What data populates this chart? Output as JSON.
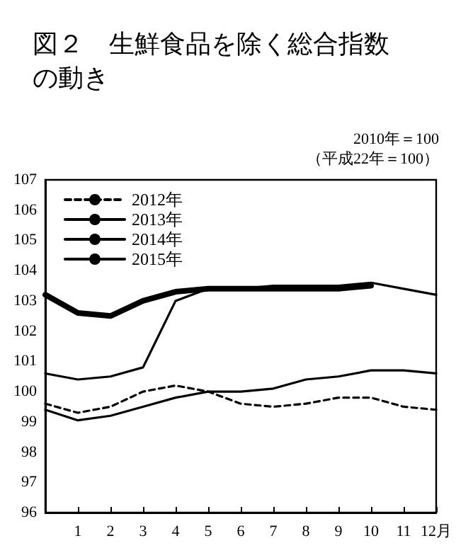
{
  "chart_data": {
    "type": "line",
    "title": "図２　生鮮食品を除く総合指数の動き",
    "annotations": [
      "2010年＝100",
      "（平成22年＝100）"
    ],
    "x": [
      0,
      1,
      2,
      3,
      4,
      5,
      6,
      7,
      8,
      9,
      10,
      11,
      12
    ],
    "series": [
      {
        "name": "2012年",
        "color": "#000000",
        "line_style": "dashed",
        "values": [
          99.6,
          99.3,
          99.5,
          100.0,
          100.2,
          100.0,
          99.6,
          99.5,
          99.6,
          99.8,
          99.8,
          99.5,
          99.4
        ]
      },
      {
        "name": "2013年",
        "color": "#000000",
        "values": [
          99.4,
          99.05,
          99.2,
          99.5,
          99.8,
          100.0,
          100.0,
          100.1,
          100.4,
          100.5,
          100.7,
          100.7,
          100.6
        ]
      },
      {
        "name": "2014年",
        "color": "#000000",
        "values": [
          100.6,
          100.4,
          100.5,
          100.8,
          103.0,
          103.4,
          103.4,
          103.5,
          103.5,
          103.5,
          103.6,
          103.4,
          103.2
        ]
      },
      {
        "name": "2015年",
        "color": "#000000",
        "values": [
          103.2,
          102.6,
          102.5,
          103.0,
          103.3,
          103.4,
          103.4,
          103.4,
          103.4,
          103.4,
          103.5,
          null,
          null
        ]
      }
    ],
    "xlim": [
      0,
      12
    ],
    "xticks": [
      {
        "value": 0,
        "label": null
      },
      1,
      2,
      3,
      4,
      5,
      6,
      7,
      8,
      9,
      10,
      11,
      {
        "value": 12,
        "label": "12月"
      }
    ],
    "ylim": [
      96,
      107
    ],
    "yticks": [
      96,
      97,
      98,
      99,
      100,
      101,
      102,
      103,
      104,
      105,
      106,
      107
    ],
    "grid": false,
    "legend": "top left",
    "marker": "none",
    "line_style": "solid"
  }
}
